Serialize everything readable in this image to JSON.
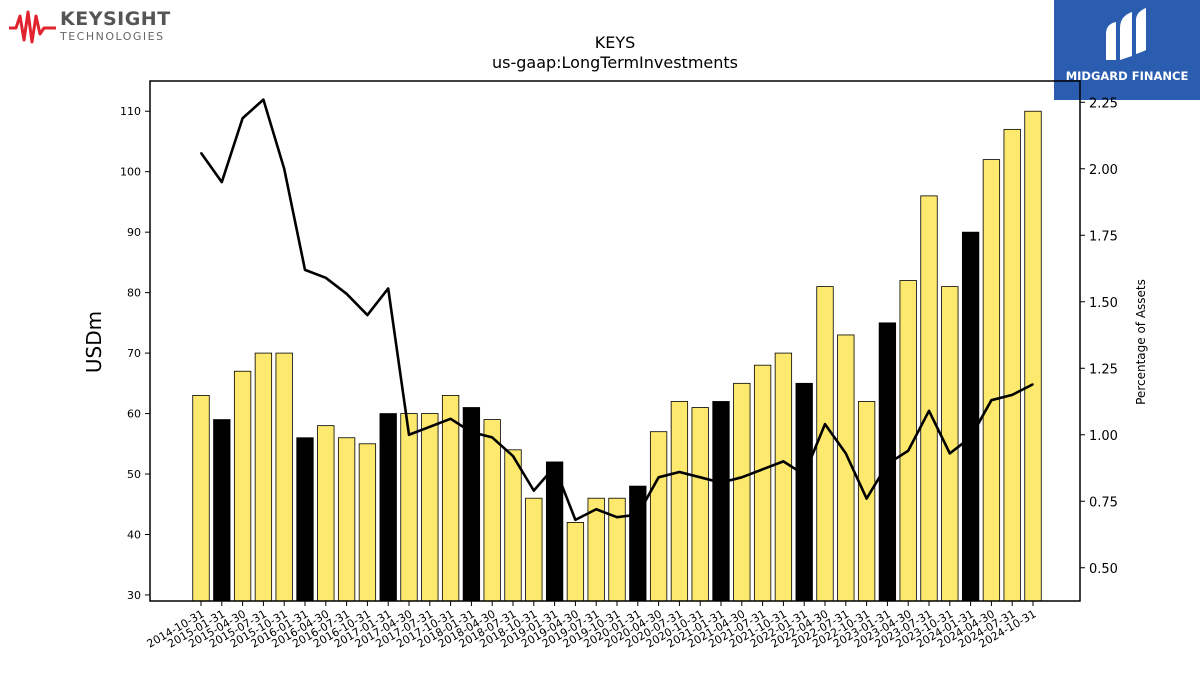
{
  "brand_left": {
    "name": "KEYSIGHT",
    "sub": "TECHNOLOGIES",
    "color": "#e0232e"
  },
  "brand_right": {
    "name": "MIDGARD FINANCE",
    "color": "#2a5db0"
  },
  "chart_data": {
    "type": "bar",
    "title": "KEYS",
    "subtitle": "us-gaap:LongTermInvestments",
    "ylabel": "USDm",
    "y2label": "Percentage of Assets",
    "ylim": [
      29,
      115
    ],
    "y2lim": [
      0.375,
      2.33
    ],
    "yticks": [
      30,
      40,
      50,
      60,
      70,
      80,
      90,
      100,
      110
    ],
    "y2ticks": [
      "0.50",
      "0.75",
      "1.00",
      "1.25",
      "1.50",
      "1.75",
      "2.00",
      "2.25"
    ],
    "bar_colors": {
      "quarter": "#fde96e",
      "fiscal_year_end": "#000000"
    },
    "categories": [
      "2014-10-31",
      "2015-01-31",
      "2015-04-30",
      "2015-07-31",
      "2015-10-31",
      "2016-01-31",
      "2016-04-30",
      "2016-07-31",
      "2016-10-31",
      "2017-01-31",
      "2017-04-30",
      "2017-07-31",
      "2017-10-31",
      "2018-01-31",
      "2018-04-30",
      "2018-07-31",
      "2018-10-31",
      "2019-01-31",
      "2019-04-30",
      "2019-07-31",
      "2019-10-31",
      "2020-01-31",
      "2020-04-30",
      "2020-07-31",
      "2020-10-31",
      "2021-01-31",
      "2021-04-30",
      "2021-07-31",
      "2021-10-31",
      "2022-01-31",
      "2022-04-30",
      "2022-07-31",
      "2022-10-31",
      "2023-01-31",
      "2023-04-30",
      "2023-07-31",
      "2023-10-31",
      "2024-01-31",
      "2024-04-30",
      "2024-07-31",
      "2024-10-31"
    ],
    "series": [
      {
        "values": [
          63,
          59,
          67,
          70,
          70,
          56,
          58,
          56,
          55,
          60,
          60,
          60,
          63,
          61,
          59,
          54,
          46,
          52,
          42,
          46,
          46,
          48,
          57,
          62,
          61,
          62,
          65,
          68,
          70,
          65,
          81,
          73,
          62,
          75,
          82,
          96,
          81,
          90,
          102,
          107,
          110
        ]
      },
      {
        "axis": "right",
        "values": [
          2.06,
          1.95,
          2.19,
          2.26,
          2.0,
          1.62,
          1.59,
          1.53,
          1.45,
          1.55,
          1.0,
          1.03,
          1.06,
          1.01,
          0.99,
          0.92,
          0.79,
          0.88,
          0.68,
          0.72,
          0.69,
          0.7,
          0.84,
          0.86,
          0.84,
          0.82,
          0.84,
          0.87,
          0.9,
          0.85,
          1.04,
          0.93,
          0.76,
          0.89,
          0.94,
          1.09,
          0.93,
          0.99,
          1.13,
          1.15,
          1.19
        ]
      }
    ],
    "fiscal_year_end_flags": [
      0,
      1,
      0,
      0,
      0,
      1,
      0,
      0,
      0,
      1,
      0,
      0,
      0,
      1,
      0,
      0,
      0,
      1,
      0,
      0,
      0,
      1,
      0,
      0,
      0,
      1,
      0,
      0,
      0,
      1,
      0,
      0,
      0,
      1,
      0,
      0,
      0,
      1,
      0,
      0,
      0
    ]
  }
}
